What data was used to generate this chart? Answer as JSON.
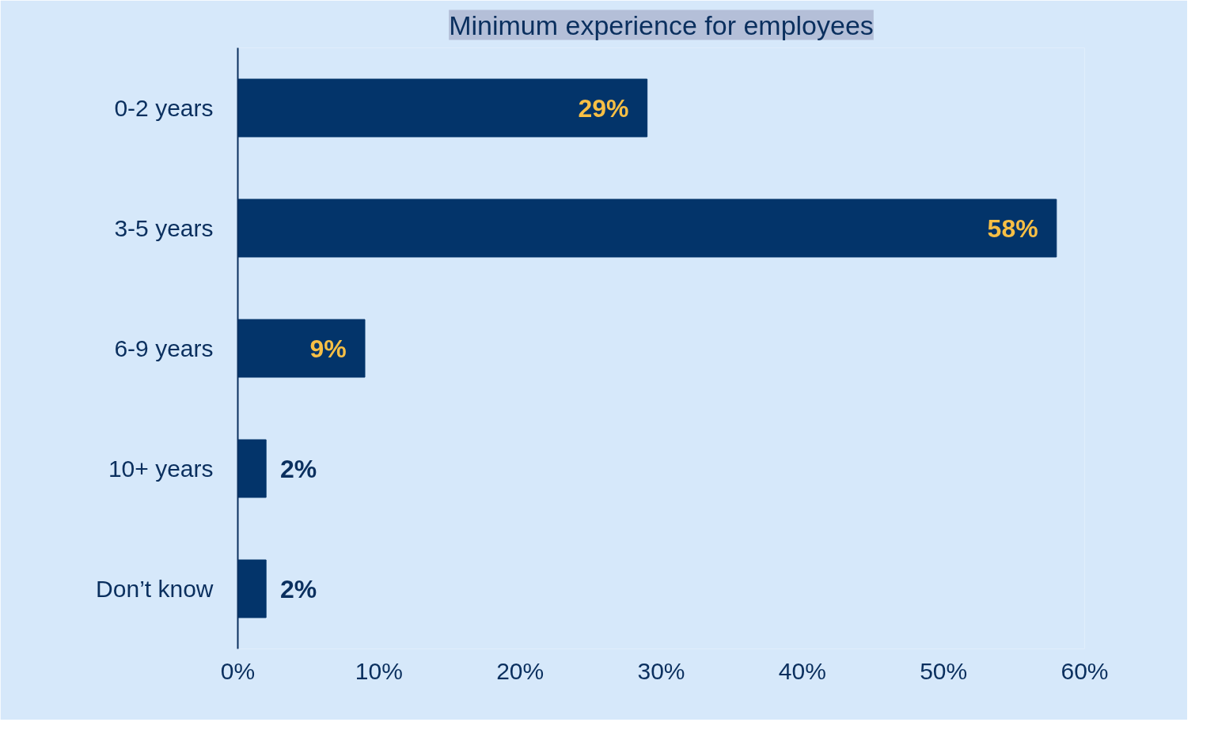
{
  "chart_data": {
    "type": "bar",
    "orientation": "horizontal",
    "title": "Minimum experience for employees",
    "categories": [
      "0-2 years",
      "3-5 years",
      "6-9 years",
      "10+ years",
      "Don’t know"
    ],
    "values": [
      29,
      58,
      9,
      2,
      2
    ],
    "value_labels": [
      "29%",
      "58%",
      "9%",
      "2%",
      "2%"
    ],
    "color": "#03346a",
    "xlim": [
      0,
      60
    ],
    "xticks": [
      {
        "value": 0,
        "label": "0%"
      },
      {
        "value": 10,
        "label": "10%"
      },
      {
        "value": 20,
        "label": "20%"
      },
      {
        "value": 30,
        "label": "30%"
      },
      {
        "value": 40,
        "label": "40%"
      },
      {
        "value": 50,
        "label": "50%"
      },
      {
        "value": 60,
        "label": "60%"
      }
    ],
    "grid": false
  }
}
